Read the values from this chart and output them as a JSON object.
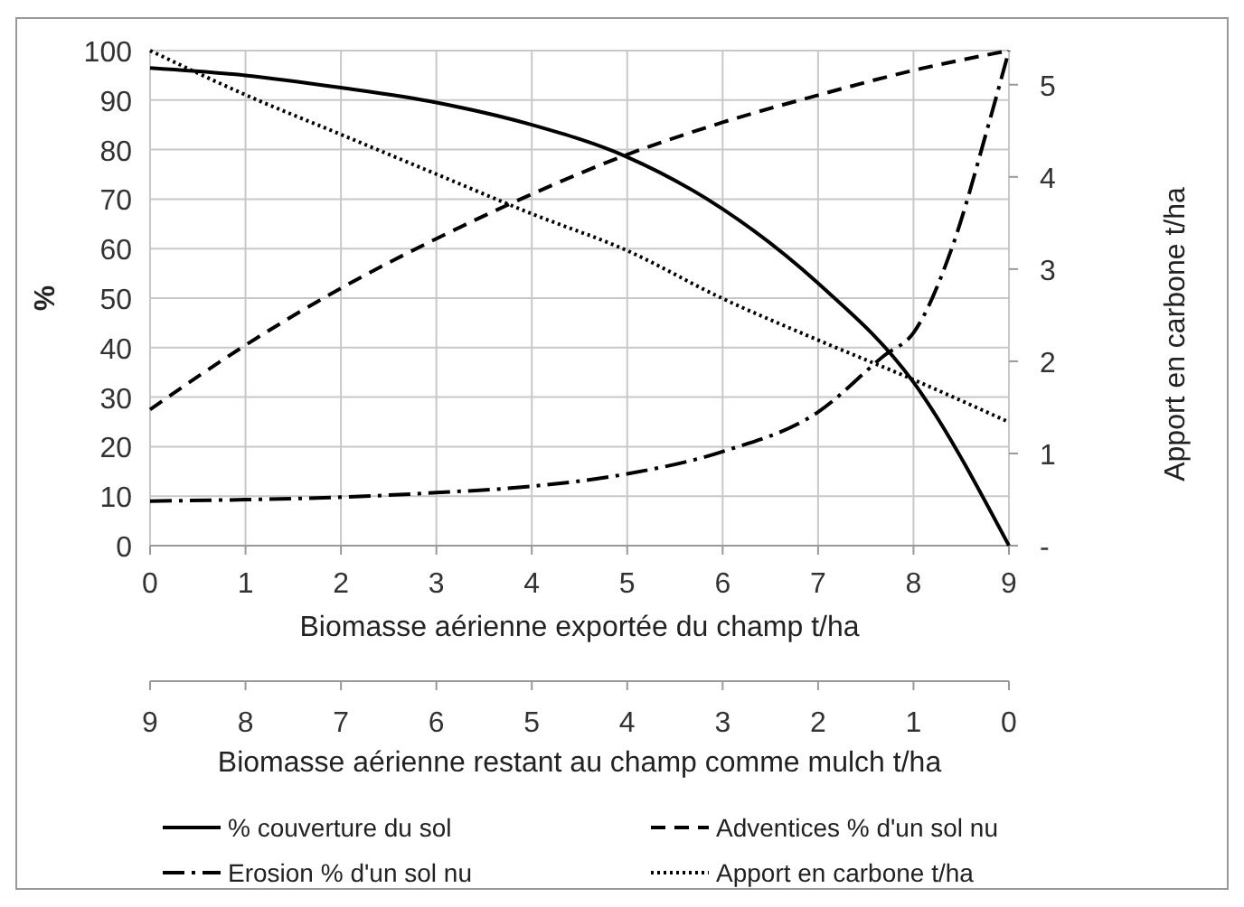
{
  "chart_data": {
    "type": "line",
    "xlabel": "Biomasse aérienne exportée du champ t/ha",
    "x2label": "Biomasse aérienne restant au champ comme mulch t/ha",
    "ylabel": "%",
    "y2label": "Apport en carbone t/ha",
    "x": [
      0,
      1,
      2,
      3,
      4,
      5,
      6,
      7,
      8,
      9
    ],
    "xlim": [
      0,
      9
    ],
    "xticks": [
      0,
      1,
      2,
      3,
      4,
      5,
      6,
      7,
      8,
      9
    ],
    "x2lim": [
      9,
      0
    ],
    "x2ticks": [
      9,
      8,
      7,
      6,
      5,
      4,
      3,
      2,
      1,
      0
    ],
    "ylim": [
      0,
      100
    ],
    "yticks": [
      0,
      10,
      20,
      30,
      40,
      50,
      60,
      70,
      80,
      90,
      100
    ],
    "y2lim": [
      0,
      5.37
    ],
    "y2ticks": [
      {
        "value": 0,
        "label": "-"
      },
      1,
      2,
      3,
      4,
      5
    ],
    "grid": true,
    "legend": "bottom",
    "marker": "none",
    "series": [
      {
        "name": "% couverture du sol",
        "color": "#000000",
        "line_style": "solid",
        "values": [
          96.5,
          95,
          92.5,
          89.5,
          85,
          78.5,
          68,
          53,
          33,
          0
        ]
      },
      {
        "name": "Adventices % d'un sol nu",
        "color": "#000000",
        "line_style": "dashed",
        "values": [
          27.5,
          40.5,
          52,
          62,
          71,
          79,
          85.5,
          91,
          96,
          100
        ]
      },
      {
        "name": "Erosion % d'un sol nu",
        "color": "#000000",
        "line_style": "dashdot",
        "x": [
          0,
          1,
          2,
          3,
          4,
          5,
          6,
          7,
          7.7,
          8,
          8.4,
          8.8,
          9
        ],
        "values": [
          9,
          9.3,
          9.8,
          10.7,
          12,
          14.5,
          19,
          27,
          38.5,
          43,
          60,
          86,
          100
        ]
      },
      {
        "name": "Apport en carbone t/ha",
        "color": "#000000",
        "line_style": "dotted",
        "axis": "y2",
        "values": [
          5.37,
          4.89,
          4.46,
          4.03,
          3.6,
          3.2,
          2.68,
          2.23,
          1.8,
          1.34
        ]
      }
    ]
  }
}
